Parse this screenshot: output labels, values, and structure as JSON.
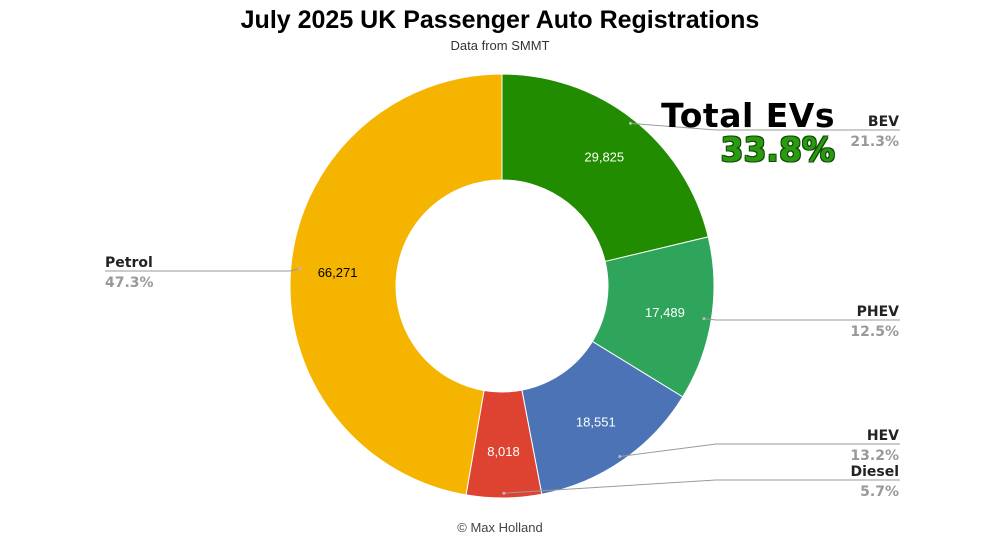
{
  "title": "July 2025 UK Passenger Auto Registrations",
  "subtitle": "Data from SMMT",
  "footer": "© Max Holland",
  "annotation": {
    "title": "Total EVs",
    "value": "33.8%",
    "color": "#2c9a10"
  },
  "chart_data": {
    "type": "pie",
    "donut": true,
    "title": "July 2025 UK Passenger Auto Registrations",
    "subtitle": "Data from SMMT",
    "categories": [
      "BEV",
      "PHEV",
      "HEV",
      "Diesel",
      "Petrol"
    ],
    "values": [
      29825,
      17489,
      18551,
      8018,
      66271
    ],
    "value_labels": [
      "29,825",
      "17,489",
      "18,551",
      "8,018",
      "66,271"
    ],
    "percent_labels": [
      "21.3%",
      "12.5%",
      "13.2%",
      "5.7%",
      "47.3%"
    ],
    "colors": [
      "#228c00",
      "#2ea55a",
      "#4b73b5",
      "#de4331",
      "#f5b400"
    ],
    "value_label_colors": [
      "#ffffff",
      "#ffffff",
      "#ffffff",
      "#ffffff",
      "#000000"
    ]
  }
}
